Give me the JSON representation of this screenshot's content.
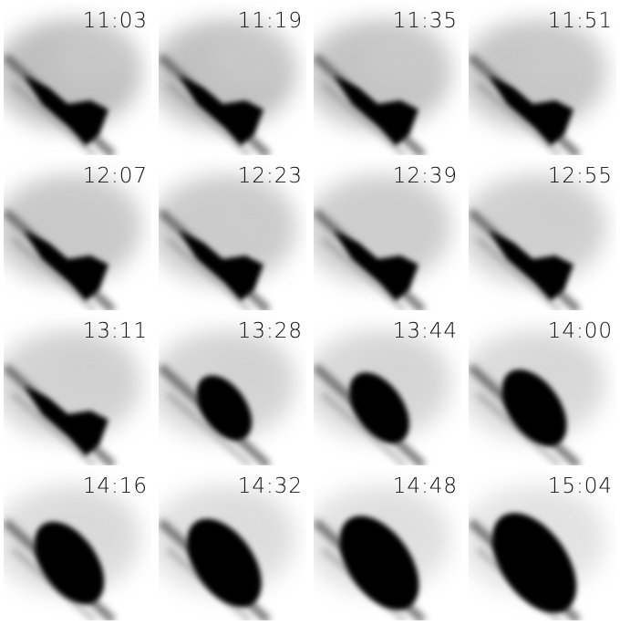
{
  "panels": [
    {
      "time": "11:03"
    },
    {
      "time": "11:19"
    },
    {
      "time": "11:35"
    },
    {
      "time": "11:51"
    },
    {
      "time": "12:07"
    },
    {
      "time": "12:23"
    },
    {
      "time": "12:39"
    },
    {
      "time": "12:55"
    },
    {
      "time": "13:11"
    },
    {
      "time": "13:28"
    },
    {
      "time": "13:44"
    },
    {
      "time": "14:00"
    },
    {
      "time": "14:16"
    },
    {
      "time": "14:32"
    },
    {
      "time": "14:48"
    },
    {
      "time": "15:04"
    }
  ]
}
